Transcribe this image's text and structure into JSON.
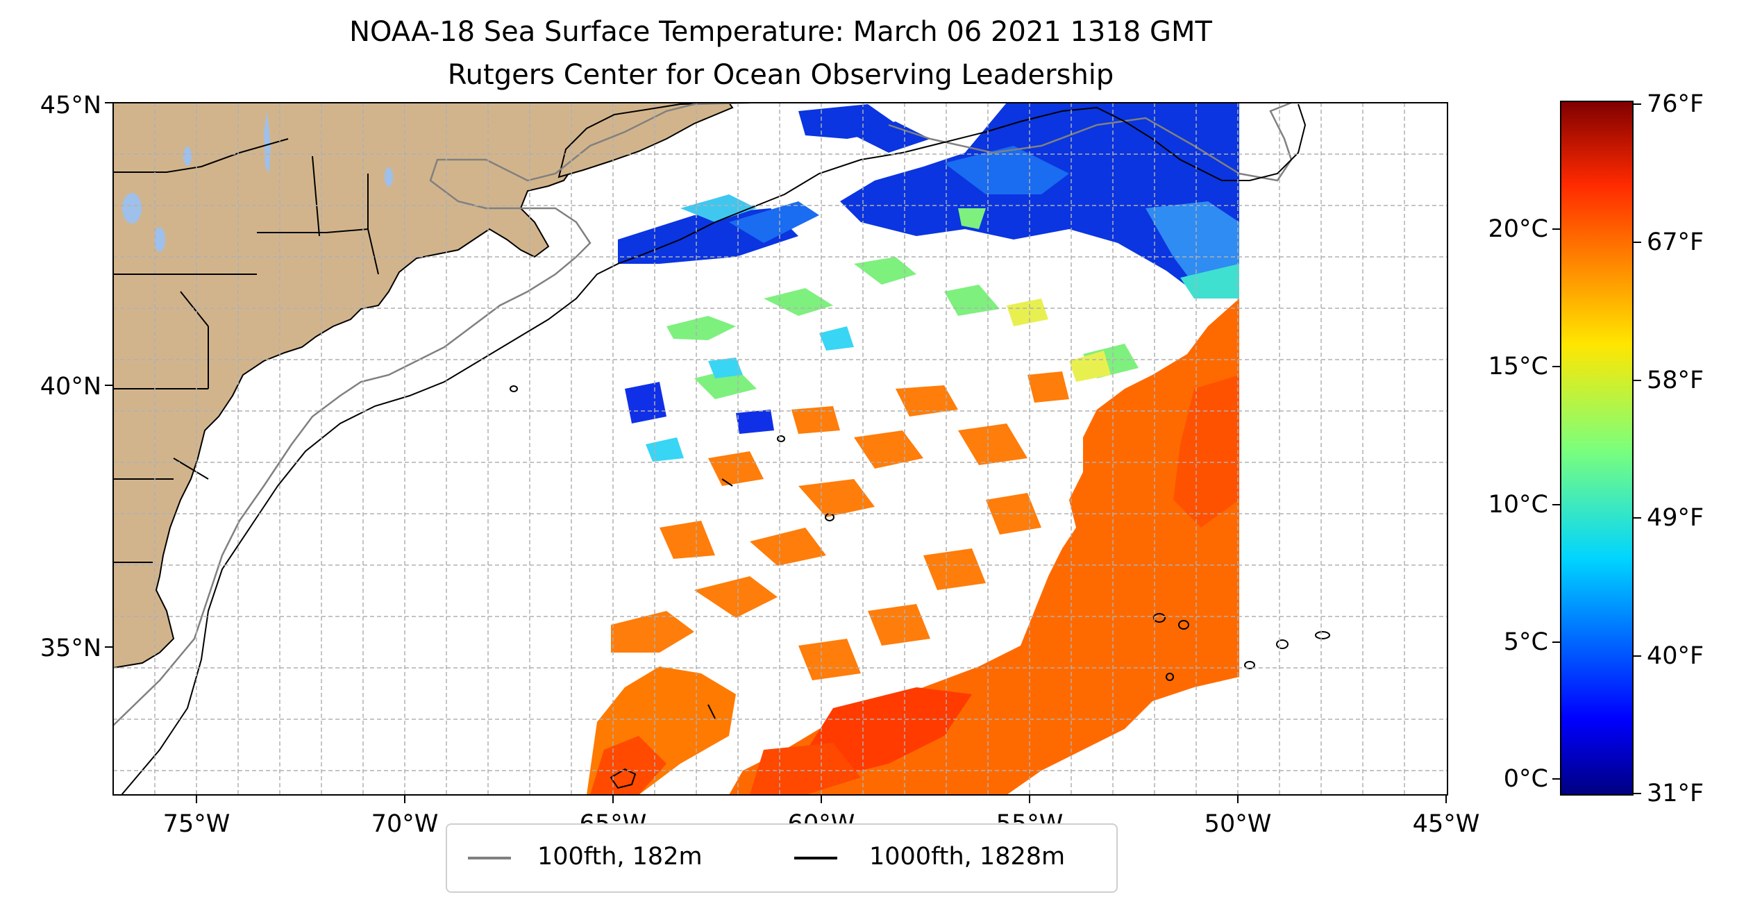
{
  "title": {
    "line1": "NOAA-18 Sea Surface Temperature: March 06 2021 1318 GMT",
    "line2": "Rutgers Center for Ocean Observing Leadership"
  },
  "map": {
    "lon_range": [
      -77,
      -45
    ],
    "lat_range": [
      31.5,
      45
    ],
    "x_ticks": [
      "75°W",
      "70°W",
      "65°W",
      "60°W",
      "55°W",
      "50°W",
      "45°W"
    ],
    "y_ticks": [
      "45°N",
      "40°N",
      "35°N"
    ],
    "land_color": "#d2b48c",
    "lake_color": "#9ec0ea",
    "grid": "dashed"
  },
  "colorbar": {
    "celsius_ticks": [
      "20°C",
      "15°C",
      "10°C",
      "5°C",
      "0°C"
    ],
    "fahrenheit_ticks": [
      "76°F",
      "67°F",
      "58°F",
      "49°F",
      "40°F",
      "31°F"
    ],
    "colormap": "jet",
    "range_f": [
      31,
      76
    ]
  },
  "legend": {
    "items": [
      {
        "label": "100fth, 182m",
        "color": "#808080"
      },
      {
        "label": "1000fth, 1828m",
        "color": "#000000"
      }
    ]
  }
}
